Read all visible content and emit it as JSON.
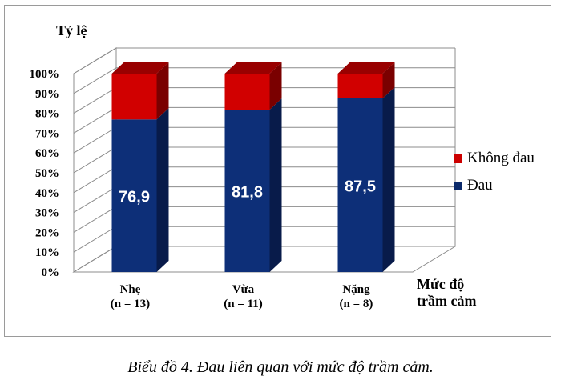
{
  "chart_data": {
    "type": "bar",
    "stacked": true,
    "percent_stacked": true,
    "style": "3d",
    "ylabel": "Tỷ lệ",
    "xlabel": "Mức độ trầm cảm",
    "ylim": [
      0,
      100
    ],
    "yticks": [
      "0%",
      "10%",
      "20%",
      "30%",
      "40%",
      "50%",
      "60%",
      "70%",
      "80%",
      "90%",
      "100%"
    ],
    "grid": true,
    "legend_position": "right",
    "categories": [
      [
        "Nhẹ",
        "(n = 13)"
      ],
      [
        "Vừa",
        "(n = 11)"
      ],
      [
        "Nặng",
        "(n = 8)"
      ]
    ],
    "series": [
      {
        "name": "Đau",
        "color": "#0b2a6b",
        "values": [
          76.9,
          81.8,
          87.5
        ],
        "labels": [
          "76,9",
          "81,8",
          "87,5"
        ]
      },
      {
        "name": "Không đau",
        "color": "#cc0000",
        "values": [
          23.1,
          18.2,
          12.5
        ]
      }
    ],
    "legend": [
      "Không đau",
      "Đau"
    ]
  },
  "caption": "Biểu đồ 4. Đau liên quan với mức độ trầm cảm."
}
